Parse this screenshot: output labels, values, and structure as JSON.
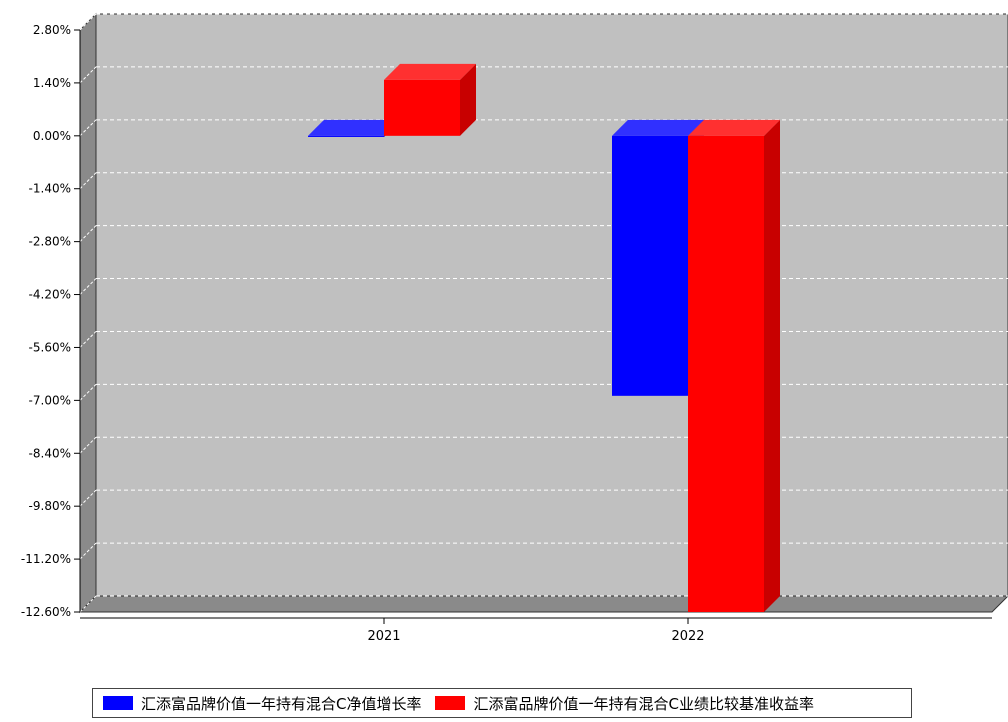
{
  "chart_data": {
    "type": "bar",
    "categories": [
      "2021",
      "2022"
    ],
    "series": [
      {
        "name": "汇添富品牌价值一年持有混合C净值增长率",
        "values": [
          -0.03,
          -6.88
        ],
        "color": "#0000ff"
      },
      {
        "name": "汇添富品牌价值一年持有混合C业绩比较基准收益率",
        "values": [
          1.48,
          -12.6
        ],
        "color": "#ff0000"
      }
    ],
    "yticks": [
      "2.80%",
      "1.40%",
      "0.00%",
      "-1.40%",
      "-2.80%",
      "-4.20%",
      "-5.60%",
      "-7.00%",
      "-8.40%",
      "-9.80%",
      "-11.20%",
      "-12.60%"
    ],
    "ylim": [
      -12.6,
      2.8
    ],
    "grid": true,
    "legend": "bottom",
    "title": "",
    "xlabel": "",
    "ylabel": ""
  }
}
